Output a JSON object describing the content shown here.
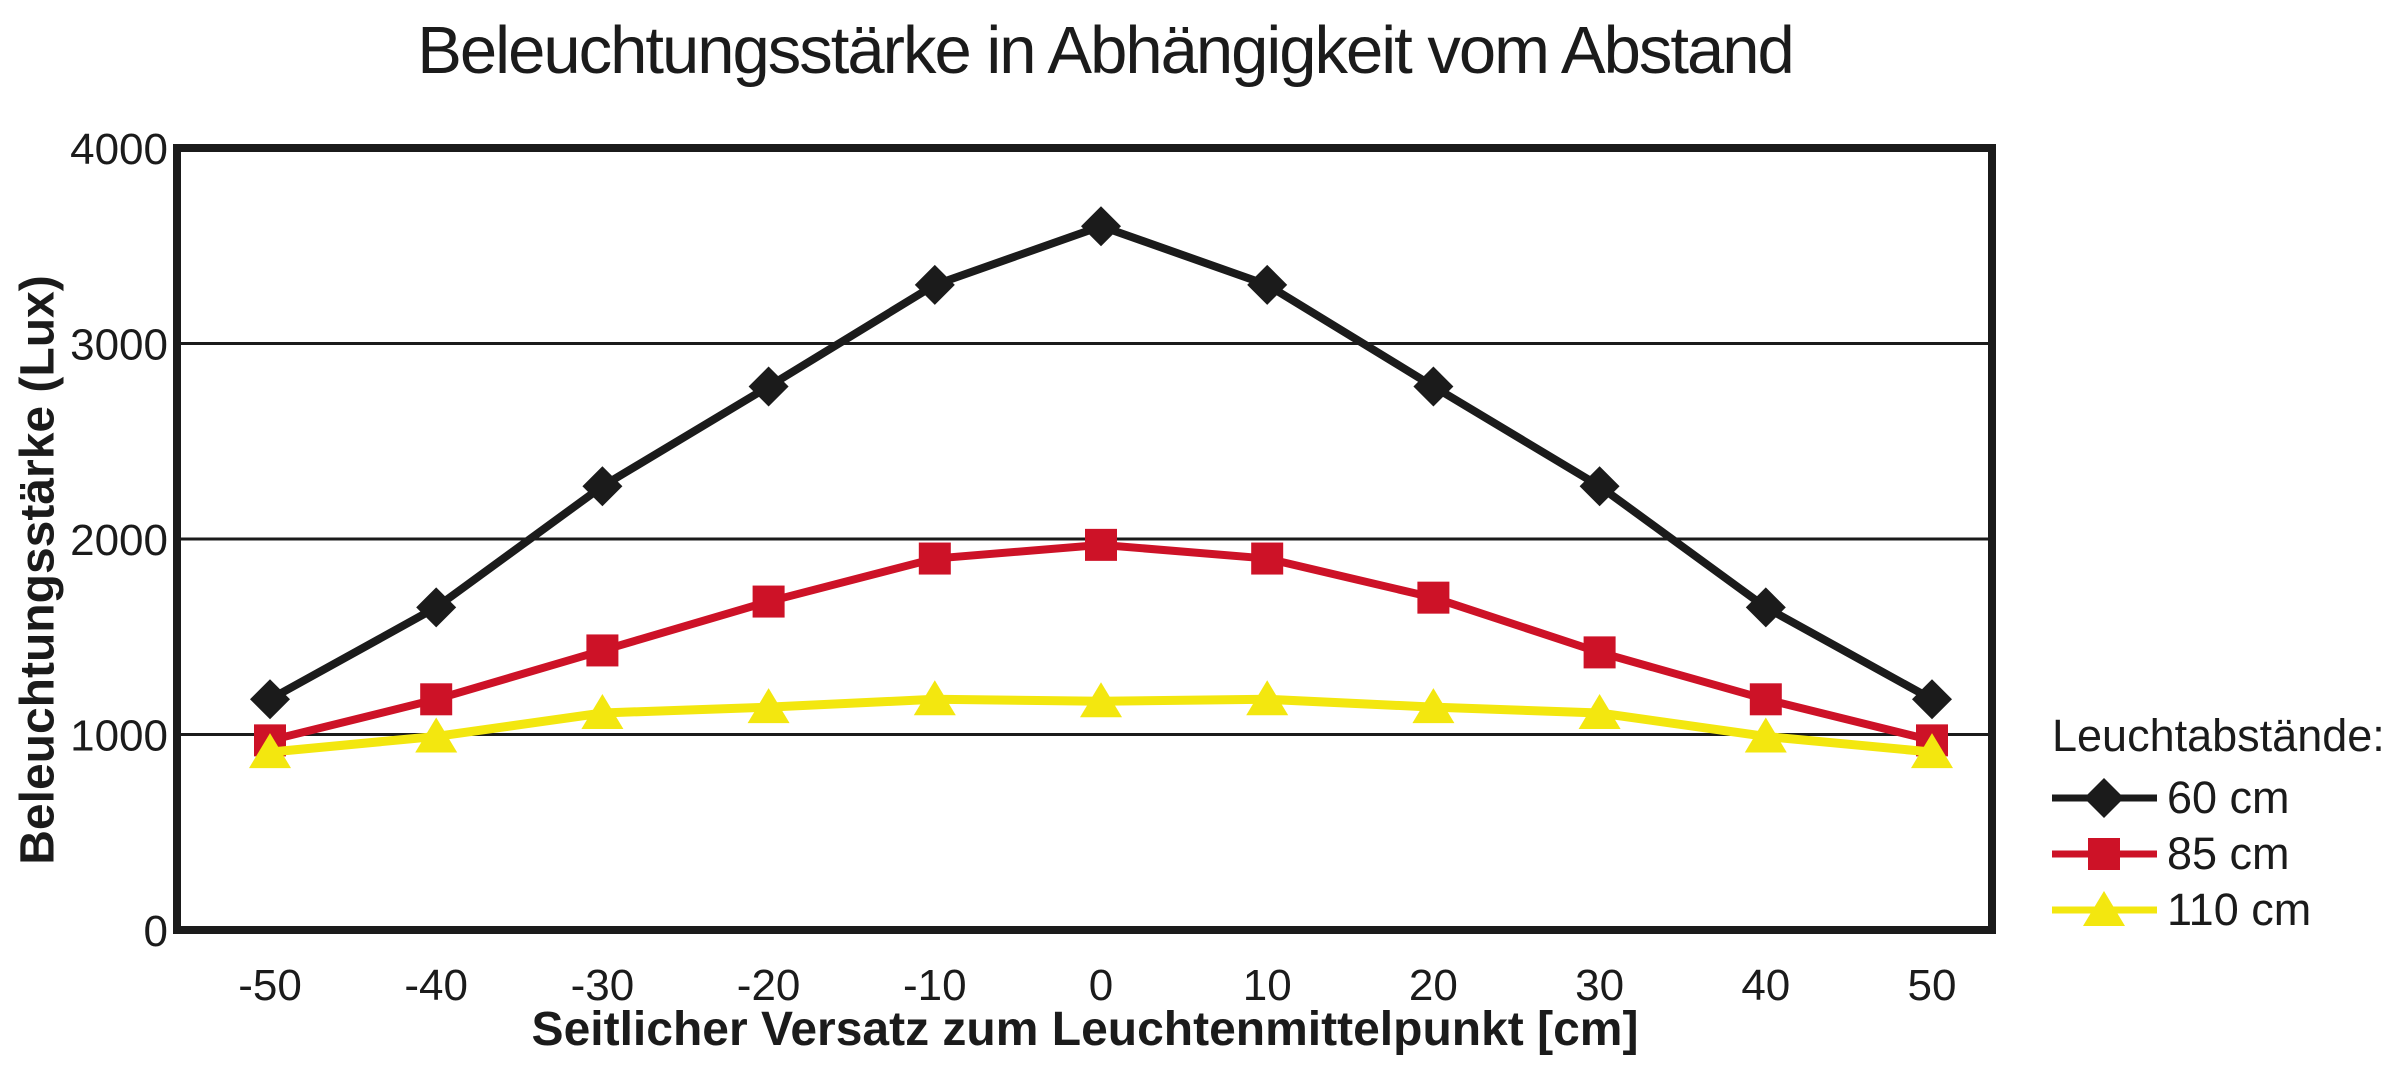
{
  "title": "Beleuchtungsstärke in Abhängigkeit vom Abstand",
  "y_axis": {
    "label": "Beleuchtungsstärke (Lux)",
    "ticks": [
      "4000",
      "3000",
      "2000",
      "1000",
      "0"
    ]
  },
  "x_axis": {
    "label": "Seitlicher Versatz zum Leuchtenmittelpunkt [cm]",
    "ticks": [
      "-50",
      "-40",
      "-30",
      "-20",
      "-10",
      "0",
      "10",
      "20",
      "30",
      "40",
      "50"
    ]
  },
  "legend": {
    "title": "Leuchtabstände:",
    "items": [
      {
        "label": "60 cm",
        "marker": "diamond-icon",
        "color": "#1b1b1b"
      },
      {
        "label": "85 cm",
        "marker": "square-icon",
        "color": "#cd1227"
      },
      {
        "label": "110 cm",
        "marker": "triangle-icon",
        "color": "#f3e70f"
      }
    ]
  },
  "colors": {
    "axis": "#1b1b1b",
    "grid": "#1b1b1b",
    "background": "#ffffff"
  },
  "chart_data": {
    "type": "line",
    "title": "Beleuchtungsstärke in Abhängigkeit vom Abstand",
    "xlabel": "Seitlicher Versatz zum Leuchtenmittelpunkt [cm]",
    "ylabel": "Beleuchtungsstärke (Lux)",
    "x": [
      -50,
      -40,
      -30,
      -20,
      -10,
      0,
      10,
      20,
      30,
      40,
      50
    ],
    "series": [
      {
        "name": "60 cm",
        "marker": "diamond",
        "color": "#1b1b1b",
        "values": [
          1180,
          1650,
          2270,
          2780,
          3300,
          3600,
          3300,
          2780,
          2270,
          1650,
          1180
        ]
      },
      {
        "name": "85 cm",
        "marker": "square",
        "color": "#cd1227",
        "values": [
          970,
          1180,
          1430,
          1680,
          1900,
          1970,
          1900,
          1700,
          1420,
          1180,
          970
        ]
      },
      {
        "name": "110 cm",
        "marker": "triangle",
        "color": "#f3e70f",
        "values": [
          910,
          990,
          1110,
          1140,
          1180,
          1170,
          1180,
          1140,
          1110,
          990,
          910
        ]
      }
    ],
    "ylim": [
      0,
      4000
    ],
    "ytick_step": 1000,
    "grid": true,
    "legend_position": "right"
  }
}
